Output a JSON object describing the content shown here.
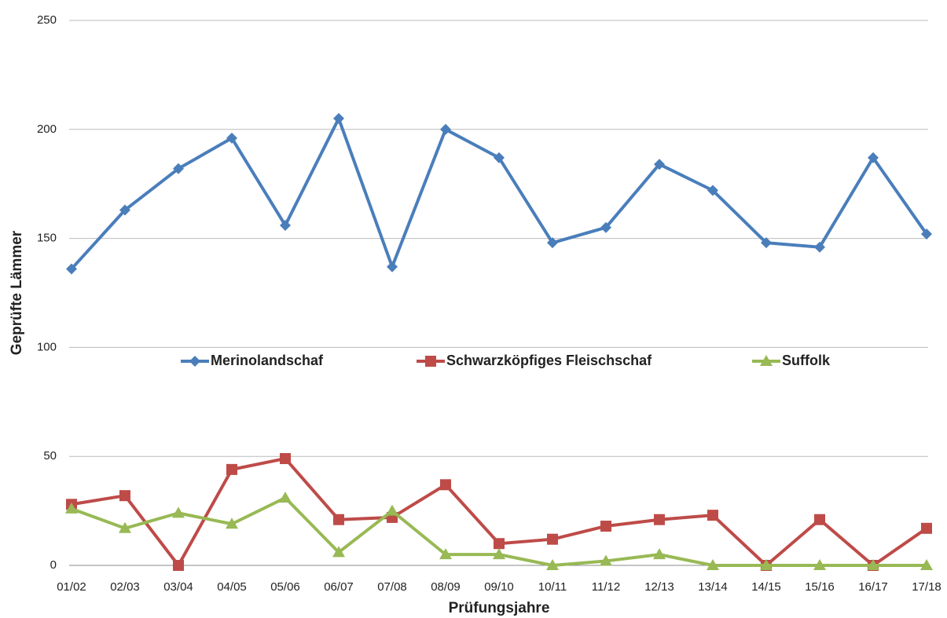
{
  "chart_data": {
    "type": "line",
    "x_label": "Prüfungsjahre",
    "y_label": "Geprüfte Lämmer",
    "categories": [
      "01/02",
      "02/03",
      "03/04",
      "04/05",
      "05/06",
      "06/07",
      "07/08",
      "08/09",
      "09/10",
      "10/11",
      "11/12",
      "12/13",
      "13/14",
      "14/15",
      "15/16",
      "16/17",
      "17/18"
    ],
    "series": [
      {
        "name": "Merinolandschaf",
        "color": "#4a7ebb",
        "marker": "diamond",
        "values": [
          136,
          163,
          182,
          196,
          156,
          205,
          137,
          200,
          187,
          148,
          155,
          184,
          172,
          148,
          146,
          187,
          152
        ]
      },
      {
        "name": "Schwarzköpfiges Fleischschaf",
        "color": "#be4b48",
        "marker": "square",
        "values": [
          28,
          32,
          0,
          44,
          49,
          21,
          22,
          37,
          10,
          12,
          18,
          21,
          23,
          0,
          21,
          0,
          17
        ]
      },
      {
        "name": "Suffolk",
        "color": "#98b954",
        "marker": "triangle",
        "values": [
          26,
          17,
          24,
          19,
          31,
          6,
          25,
          5,
          5,
          0,
          2,
          5,
          0,
          0,
          0,
          0,
          0
        ]
      }
    ],
    "ylim": [
      0,
      250
    ],
    "yticks": [
      0,
      50,
      100,
      150,
      200,
      250
    ],
    "grid": true
  }
}
